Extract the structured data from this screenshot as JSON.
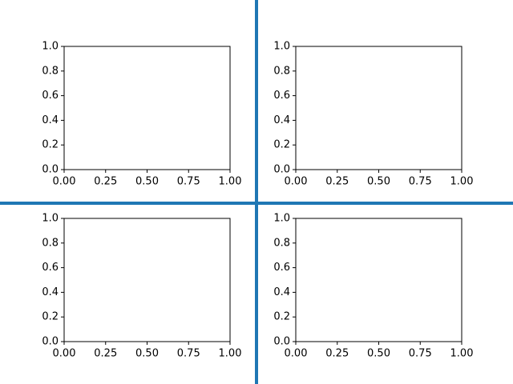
{
  "chart_data": [
    {
      "type": "line",
      "xlim": [
        0,
        1
      ],
      "ylim": [
        0,
        1
      ],
      "xticks": [
        {
          "value": 0,
          "label": "0.00"
        },
        0.25,
        {
          "value": 0.5,
          "label": "0.50"
        },
        0.75,
        {
          "value": 1,
          "label": "1.00"
        }
      ],
      "yticks": [
        {
          "value": 0,
          "label": "0.0"
        },
        0.2,
        0.4,
        0.6,
        0.8,
        {
          "value": 1,
          "label": "1.0"
        }
      ]
    },
    {
      "type": "line",
      "xlim": [
        0,
        1
      ],
      "ylim": [
        0,
        1
      ],
      "xticks": [
        {
          "value": 0,
          "label": "0.00"
        },
        0.25,
        {
          "value": 0.5,
          "label": "0.50"
        },
        0.75,
        {
          "value": 1,
          "label": "1.00"
        }
      ],
      "yticks": [
        {
          "value": 0,
          "label": "0.0"
        },
        0.2,
        0.4,
        0.6,
        0.8,
        {
          "value": 1,
          "label": "1.0"
        }
      ]
    },
    {
      "type": "line",
      "xlim": [
        0,
        1
      ],
      "ylim": [
        0,
        1
      ],
      "xticks": [
        {
          "value": 0,
          "label": "0.00"
        },
        0.25,
        {
          "value": 0.5,
          "label": "0.50"
        },
        0.75,
        {
          "value": 1,
          "label": "1.00"
        }
      ],
      "yticks": [
        {
          "value": 0,
          "label": "0.0"
        },
        0.2,
        0.4,
        0.6,
        0.8,
        {
          "value": 1,
          "label": "1.0"
        }
      ]
    },
    {
      "type": "line",
      "xlim": [
        0,
        1
      ],
      "ylim": [
        0,
        1
      ],
      "xticks": [
        {
          "value": 0,
          "label": "0.00"
        },
        0.25,
        {
          "value": 0.5,
          "label": "0.50"
        },
        0.75,
        {
          "value": 1,
          "label": "1.00"
        }
      ],
      "yticks": [
        {
          "value": 0,
          "label": "0.0"
        },
        0.2,
        0.4,
        0.6,
        0.8,
        {
          "value": 1,
          "label": "1.0"
        }
      ]
    }
  ]
}
